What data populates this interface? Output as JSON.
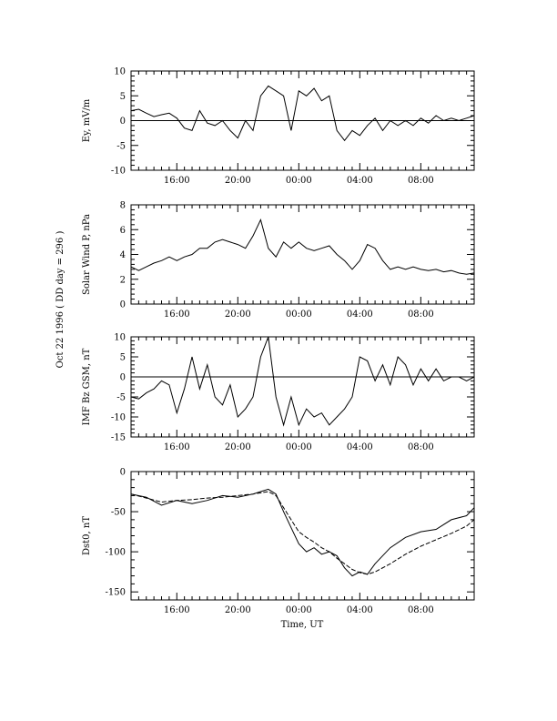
{
  "side_label": "Oct 22 1996  ( DD day = 296 )",
  "x_tick_labels": [
    "16:00",
    "20:00",
    "00:00",
    "04:00",
    "08:00"
  ],
  "xlabel": "Time, UT",
  "chart_data": [
    {
      "type": "line",
      "ylabel": "Ey, mV/m",
      "ylim": [
        -10,
        10
      ],
      "yticks": [
        -10,
        -5,
        0,
        5,
        10
      ],
      "zero_line": true,
      "x_unit": "hours since 12:00 UT",
      "series": [
        {
          "x": [
            0,
            0.5,
            1,
            1.5,
            2,
            2.5,
            3,
            3.5,
            4,
            4.5,
            5,
            5.5,
            6,
            6.5,
            7,
            7.5,
            8,
            8.5,
            9,
            9.5,
            10,
            10.5,
            11,
            11.5,
            12,
            12.5,
            13,
            13.5,
            14,
            14.5,
            15,
            15.5,
            16,
            16.5,
            17,
            17.5,
            18,
            18.5,
            19,
            19.5,
            20,
            20.5,
            21,
            21.5,
            22,
            22.5
          ],
          "y": [
            2,
            2.3,
            1.5,
            0.8,
            1.2,
            1.5,
            0.5,
            -1.5,
            -2,
            2,
            -0.5,
            -1,
            0,
            -2,
            -3.5,
            0,
            -2,
            5,
            7,
            6,
            5,
            -2,
            6,
            5,
            6.5,
            4,
            5,
            -2,
            -4,
            -2,
            -3,
            -1,
            0.5,
            -2,
            0,
            -1,
            0,
            -1,
            0.5,
            -0.5,
            1,
            0,
            0.5,
            0,
            0.5,
            1
          ]
        }
      ]
    },
    {
      "type": "line",
      "ylabel": "Solar Wind P, nPa",
      "ylim": [
        0,
        8
      ],
      "yticks": [
        0,
        2,
        4,
        6,
        8
      ],
      "zero_line": false,
      "x_unit": "hours since 12:00 UT",
      "series": [
        {
          "x": [
            0,
            0.5,
            1,
            1.5,
            2,
            2.5,
            3,
            3.5,
            4,
            4.5,
            5,
            5.5,
            6,
            6.5,
            7,
            7.5,
            8,
            8.5,
            9,
            9.5,
            10,
            10.5,
            11,
            11.5,
            12,
            12.5,
            13,
            13.5,
            14,
            14.5,
            15,
            15.5,
            16,
            16.5,
            17,
            17.5,
            18,
            18.5,
            19,
            19.5,
            20,
            20.5,
            21,
            21.5,
            22,
            22.5
          ],
          "y": [
            3,
            2.7,
            3,
            3.3,
            3.5,
            3.8,
            3.5,
            3.8,
            4,
            4.5,
            4.5,
            5,
            5.2,
            5,
            4.8,
            4.5,
            5.5,
            6.8,
            4.5,
            3.8,
            5,
            4.5,
            5,
            4.5,
            4.3,
            4.5,
            4.7,
            4,
            3.5,
            2.8,
            3.5,
            4.8,
            4.5,
            3.5,
            2.8,
            3,
            2.8,
            3,
            2.8,
            2.7,
            2.8,
            2.6,
            2.7,
            2.5,
            2.4,
            2.5
          ]
        }
      ]
    },
    {
      "type": "line",
      "ylabel": "IMF Bz GSM, nT",
      "ylim": [
        -15,
        10
      ],
      "yticks": [
        -15,
        -10,
        -5,
        0,
        5,
        10
      ],
      "zero_line": true,
      "x_unit": "hours since 12:00 UT",
      "series": [
        {
          "x": [
            0,
            0.5,
            1,
            1.5,
            2,
            2.5,
            3,
            3.5,
            4,
            4.5,
            5,
            5.5,
            6,
            6.5,
            7,
            7.5,
            8,
            8.5,
            9,
            9.5,
            10,
            10.5,
            11,
            11.5,
            12,
            12.5,
            13,
            13.5,
            14,
            14.5,
            15,
            15.5,
            16,
            16.5,
            17,
            17.5,
            18,
            18.5,
            19,
            19.5,
            20,
            20.5,
            21,
            21.5,
            22,
            22.5
          ],
          "y": [
            -5,
            -5.5,
            -4,
            -3,
            -1,
            -2,
            -9,
            -3,
            5,
            -3,
            3,
            -5,
            -7,
            -2,
            -10,
            -8,
            -5,
            5,
            10,
            -5,
            -12,
            -5,
            -12,
            -8,
            -10,
            -9,
            -12,
            -10,
            -8,
            -5,
            5,
            4,
            -1,
            3,
            -2,
            5,
            3,
            -2,
            2,
            -1,
            2,
            -1,
            0,
            0,
            -1,
            0
          ]
        }
      ]
    },
    {
      "type": "line",
      "ylabel": "Dst0, nT",
      "ylim": [
        -160,
        0
      ],
      "yticks": [
        -150,
        -100,
        -50,
        0
      ],
      "zero_line": false,
      "x_unit": "hours since 12:00 UT",
      "series": [
        {
          "x": [
            0,
            1,
            2,
            3,
            4,
            5,
            6,
            7,
            8,
            8.5,
            9,
            9.5,
            10,
            10.5,
            11,
            11.5,
            12,
            12.5,
            13,
            13.5,
            14,
            14.5,
            15,
            15.5,
            16,
            17,
            18,
            19,
            20,
            21,
            22,
            22.5
          ],
          "y": [
            -28,
            -32,
            -42,
            -36,
            -40,
            -36,
            -30,
            -32,
            -28,
            -25,
            -22,
            -28,
            -50,
            -70,
            -90,
            -100,
            -95,
            -103,
            -100,
            -105,
            -120,
            -130,
            -125,
            -128,
            -115,
            -95,
            -82,
            -75,
            -72,
            -60,
            -55,
            -45
          ]
        },
        {
          "x": [
            0,
            1,
            2,
            3,
            4,
            5,
            6,
            7,
            8,
            9,
            9.5,
            10,
            10.5,
            11,
            11.5,
            12,
            12.5,
            13,
            13.5,
            14,
            14.5,
            15,
            15.5,
            16,
            17,
            18,
            19,
            20,
            21,
            22,
            22.5
          ],
          "y": [
            -28,
            -33,
            -38,
            -36,
            -35,
            -33,
            -32,
            -30,
            -28,
            -25,
            -30,
            -45,
            -60,
            -75,
            -82,
            -88,
            -95,
            -100,
            -108,
            -115,
            -122,
            -126,
            -128,
            -125,
            -115,
            -103,
            -93,
            -85,
            -77,
            -68,
            -60
          ]
        }
      ]
    }
  ]
}
